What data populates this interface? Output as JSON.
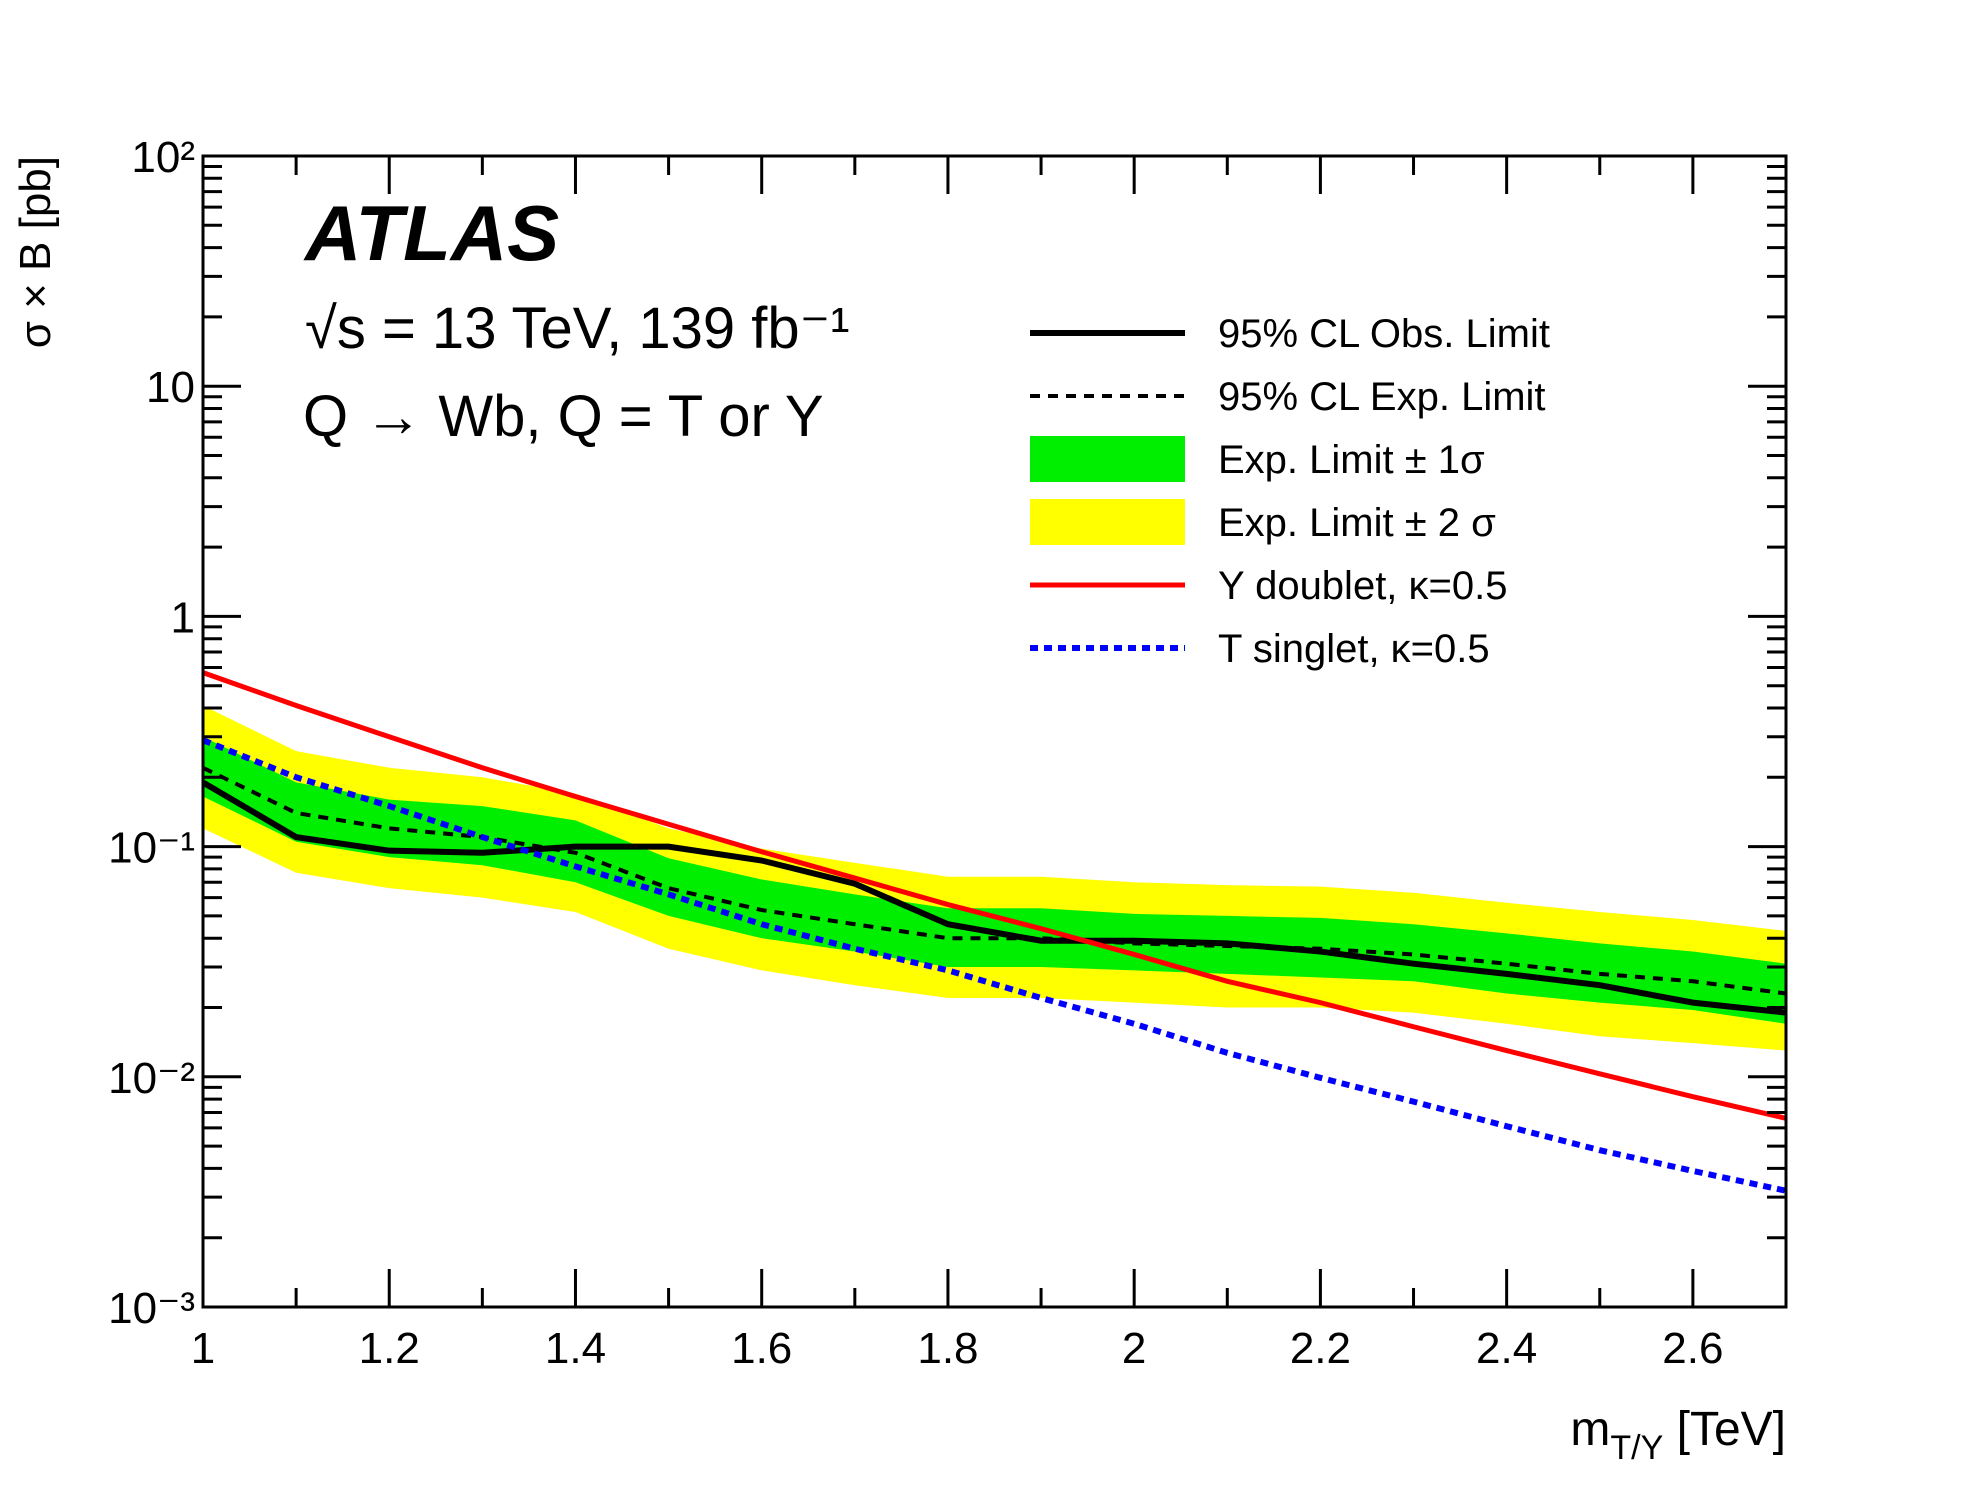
{
  "chart_data": {
    "type": "line",
    "log_y": true,
    "experiment": "ATLAS",
    "energy_label": "√s = 13 TeV, 139 fb⁻¹",
    "process_label": "Q → Wb, Q = T or Y",
    "ylabel": "σ × B [pb]",
    "xlabel": {
      "main": "m",
      "sub": "T/Y",
      "unit": " [TeV]"
    },
    "x": [
      1.0,
      1.1,
      1.2,
      1.3,
      1.4,
      1.5,
      1.6,
      1.7,
      1.8,
      1.9,
      2.0,
      2.1,
      2.2,
      2.3,
      2.4,
      2.5,
      2.6,
      2.7
    ],
    "xlim": [
      1,
      2.7
    ],
    "xticks": [
      1,
      1.2,
      1.4,
      1.6,
      1.8,
      2,
      2.2,
      2.4,
      2.6
    ],
    "xminorticks": [
      1.1,
      1.3,
      1.5,
      1.7,
      1.9,
      2.1,
      2.3,
      2.5,
      2.7
    ],
    "ylim": [
      0.001,
      100
    ],
    "yticks": [
      {
        "value": 0.001,
        "label": "10⁻³"
      },
      {
        "value": 0.01,
        "label": "10⁻²"
      },
      {
        "value": 0.1,
        "label": "10⁻¹"
      },
      1,
      10,
      {
        "value": 100,
        "label": "10²"
      }
    ],
    "yminorticks": [
      0.002,
      0.003,
      0.004,
      0.005,
      0.006,
      0.007,
      0.008,
      0.009,
      0.02,
      0.03,
      0.04,
      0.05,
      0.06,
      0.07,
      0.08,
      0.09,
      0.2,
      0.3,
      0.4,
      0.5,
      0.6,
      0.7,
      0.8,
      0.9,
      2,
      3,
      4,
      5,
      6,
      7,
      8,
      9,
      20,
      30,
      40,
      50,
      60,
      70,
      80,
      90
    ],
    "series": [
      {
        "name": "Exp. Limit ± 2 σ",
        "kind": "band",
        "color": "#ffff00",
        "upper": [
          0.41,
          0.26,
          0.22,
          0.2,
          0.17,
          0.12,
          0.098,
          0.085,
          0.074,
          0.074,
          0.07,
          0.068,
          0.067,
          0.063,
          0.057,
          0.052,
          0.048,
          0.043
        ],
        "lower": [
          0.12,
          0.077,
          0.066,
          0.06,
          0.052,
          0.036,
          0.029,
          0.025,
          0.022,
          0.022,
          0.021,
          0.02,
          0.02,
          0.019,
          0.017,
          0.015,
          0.014,
          0.013
        ]
      },
      {
        "name": "Exp. Limit ± 1σ",
        "kind": "band",
        "color": "#00ee00",
        "upper": [
          0.3,
          0.19,
          0.16,
          0.15,
          0.13,
          0.089,
          0.072,
          0.062,
          0.054,
          0.054,
          0.051,
          0.05,
          0.049,
          0.046,
          0.042,
          0.038,
          0.035,
          0.031
        ],
        "lower": [
          0.165,
          0.105,
          0.09,
          0.083,
          0.07,
          0.05,
          0.04,
          0.035,
          0.03,
          0.03,
          0.029,
          0.028,
          0.027,
          0.026,
          0.023,
          0.021,
          0.0195,
          0.017
        ]
      },
      {
        "name": "95% CL Exp. Limit",
        "kind": "line",
        "color": "#000000",
        "dash": "dashed",
        "width": 4,
        "values": [
          0.22,
          0.14,
          0.12,
          0.11,
          0.094,
          0.066,
          0.053,
          0.046,
          0.04,
          0.04,
          0.038,
          0.037,
          0.036,
          0.034,
          0.031,
          0.028,
          0.026,
          0.023
        ]
      },
      {
        "name": "95% CL Obs. Limit",
        "kind": "line",
        "color": "#000000",
        "dash": "solid",
        "width": 6,
        "values": [
          0.19,
          0.11,
          0.096,
          0.094,
          0.1,
          0.1,
          0.087,
          0.069,
          0.046,
          0.039,
          0.039,
          0.038,
          0.035,
          0.031,
          0.028,
          0.025,
          0.021,
          0.019
        ]
      },
      {
        "name": "Y doublet, κ=0.5",
        "kind": "line",
        "color": "#ff0000",
        "dash": "solid",
        "width": 5,
        "values": [
          0.57,
          0.41,
          0.3,
          0.22,
          0.165,
          0.125,
          0.095,
          0.073,
          0.056,
          0.044,
          0.034,
          0.026,
          0.021,
          0.0165,
          0.013,
          0.0103,
          0.0082,
          0.0066
        ]
      },
      {
        "name": "T singlet, κ=0.5",
        "kind": "line",
        "color": "#0000ff",
        "dash": "dotted",
        "width": 6,
        "values": [
          0.29,
          0.2,
          0.15,
          0.11,
          0.082,
          0.062,
          0.046,
          0.036,
          0.029,
          0.022,
          0.017,
          0.0127,
          0.0099,
          0.0078,
          0.0061,
          0.0048,
          0.0039,
          0.0032
        ]
      }
    ],
    "legend_order": [
      3,
      2,
      1,
      0,
      4,
      5
    ]
  }
}
